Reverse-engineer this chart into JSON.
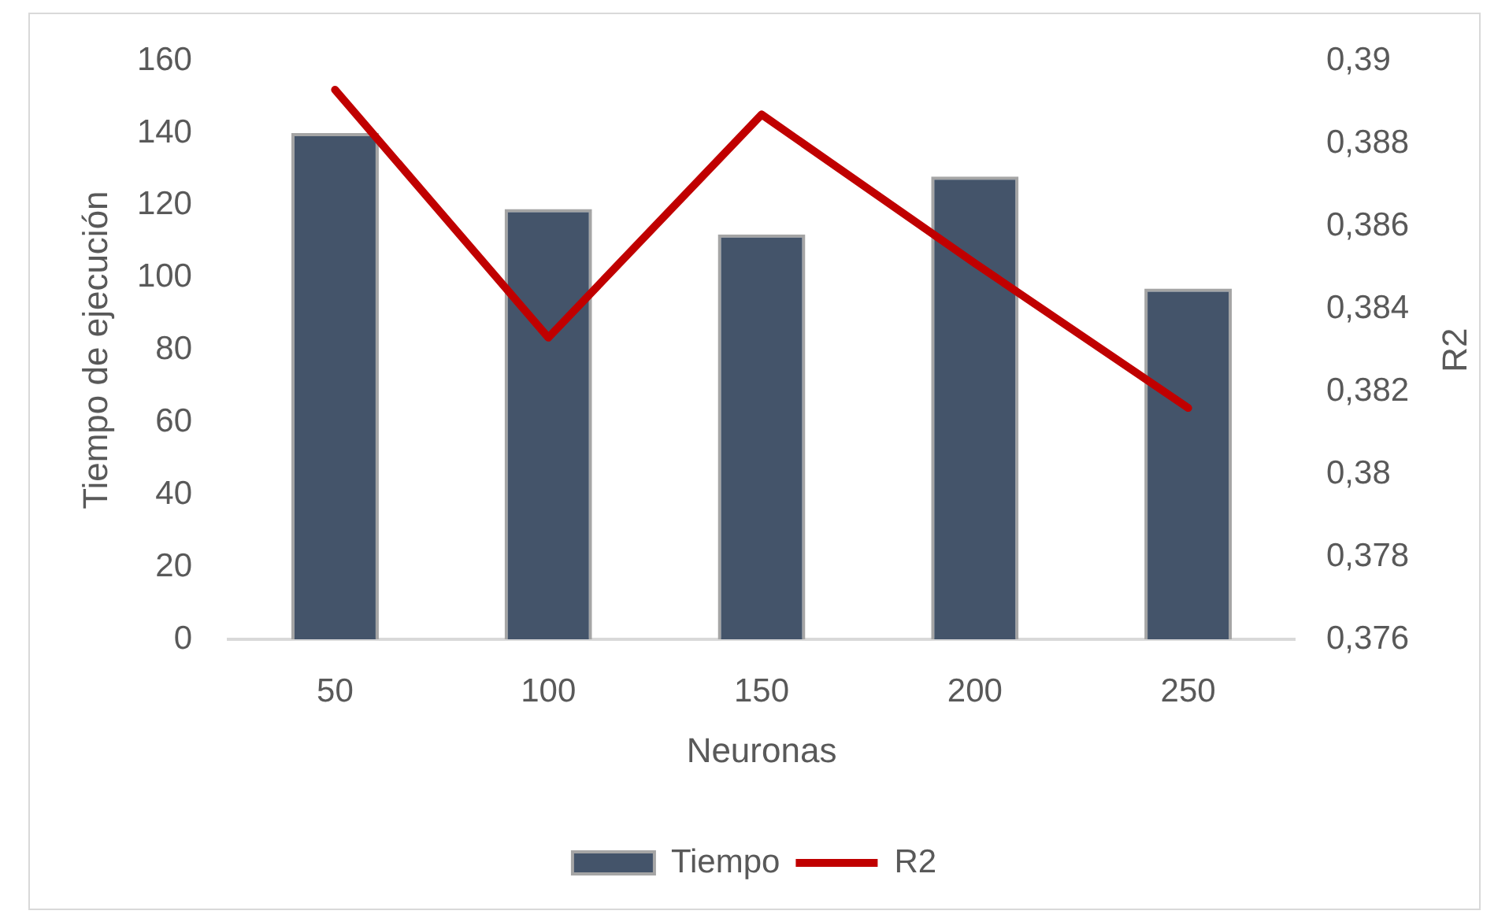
{
  "chart_data": {
    "type": "bar",
    "xlabel": "Neuronas",
    "ylabel": "Tiempo de ejecución",
    "y2label": "R2",
    "categories": [
      "50",
      "100",
      "150",
      "200",
      "250"
    ],
    "series": [
      {
        "name": "Tiempo",
        "color": "#44546a",
        "values": [
          140,
          119,
          112,
          128,
          97
        ]
      },
      {
        "name": "R2",
        "type": "line",
        "axis": "y2",
        "color": "#c00000",
        "values": [
          0.3893,
          0.3833,
          0.3887,
          0.3851,
          0.3816
        ]
      }
    ],
    "ylim": [
      0,
      160
    ],
    "yticks": [
      0,
      20,
      40,
      60,
      80,
      100,
      120,
      140,
      160
    ],
    "y2lim": [
      0.376,
      0.39
    ],
    "y2ticks": [
      {
        "value": 0.376,
        "label": "0,376"
      },
      {
        "value": 0.378,
        "label": "0,378"
      },
      {
        "value": 0.38,
        "label": "0,38"
      },
      {
        "value": 0.382,
        "label": "0,382"
      },
      {
        "value": 0.384,
        "label": "0,384"
      },
      {
        "value": 0.386,
        "label": "0,386"
      },
      {
        "value": 0.388,
        "label": "0,388"
      },
      {
        "value": 0.39,
        "label": "0,39"
      }
    ],
    "legend": "bottom"
  }
}
